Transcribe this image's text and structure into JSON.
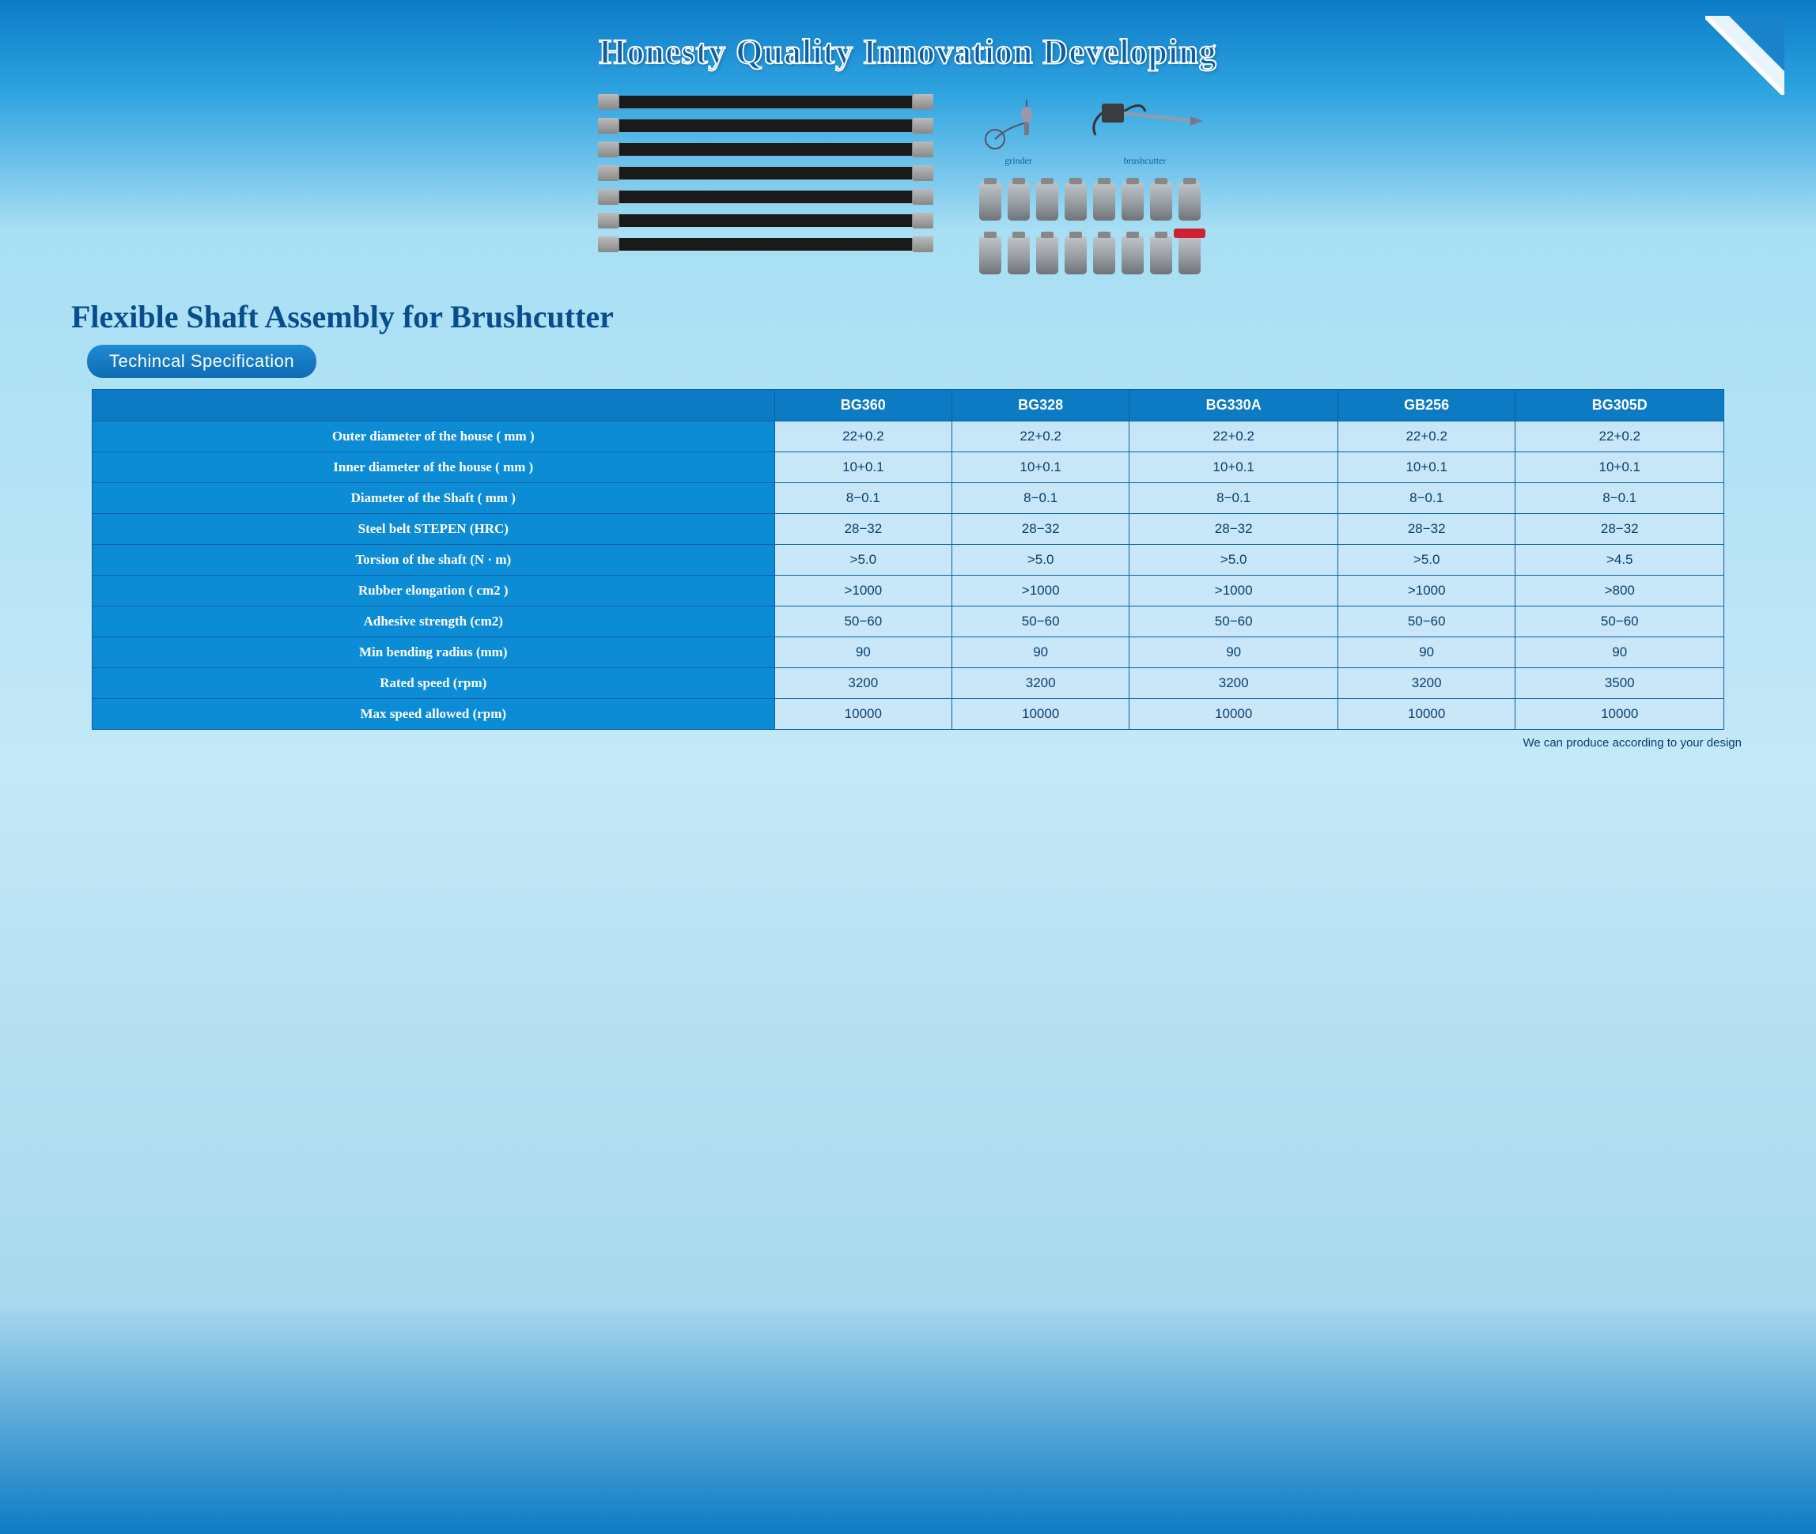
{
  "banner": {
    "slogan": "Honesty Quality Innovation Developing",
    "text_color": "#0a5fa8",
    "stroke_color": "#ffffff"
  },
  "illustrations": {
    "shaft_count": 7,
    "tool_labels": {
      "left": "grinder",
      "right": "brushcutter"
    },
    "connector_rows": [
      8,
      8
    ],
    "connector_colors": {
      "default": "#9aa0a4",
      "special": "#cc2233"
    }
  },
  "section": {
    "title": "Flexible Shaft Assembly for Brushcutter",
    "pill_label": "Techincal Specification"
  },
  "table": {
    "type": "table",
    "border_color": "#0a5fa8",
    "header_bg": "#0d7bc4",
    "rowheader_bg": "#0d8cd6",
    "header_text_color": "#ffffff",
    "cell_text_color": "#0a3d6b",
    "columns": [
      "",
      "BG360",
      "BG328",
      "BG330A",
      "GB256",
      "BG305D"
    ],
    "rows": [
      {
        "label": "Outer diameter of the house ( mm )",
        "values": [
          "22+0.2",
          "22+0.2",
          "22+0.2",
          "22+0.2",
          "22+0.2"
        ]
      },
      {
        "label": "Inner diameter of the house ( mm )",
        "values": [
          "10+0.1",
          "10+0.1",
          "10+0.1",
          "10+0.1",
          "10+0.1"
        ]
      },
      {
        "label": "Diameter of the Shaft  ( mm )",
        "values": [
          "8−0.1",
          "8−0.1",
          "8−0.1",
          "8−0.1",
          "8−0.1"
        ]
      },
      {
        "label": "Steel belt STEPEN (HRC)",
        "values": [
          "28−32",
          "28−32",
          "28−32",
          "28−32",
          "28−32"
        ]
      },
      {
        "label": "Torsion of the shaft (N · m)",
        "values": [
          ">5.0",
          ">5.0",
          ">5.0",
          ">5.0",
          ">4.5"
        ]
      },
      {
        "label": "Rubber elongation  ( cm2 )",
        "values": [
          ">1000",
          ">1000",
          ">1000",
          ">1000",
          ">800"
        ]
      },
      {
        "label": "Adhesive strength (cm2)",
        "values": [
          "50−60",
          "50−60",
          "50−60",
          "50−60",
          "50−60"
        ]
      },
      {
        "label": "Min bending radius (mm)",
        "values": [
          "90",
          "90",
          "90",
          "90",
          "90"
        ]
      },
      {
        "label": "Rated speed (rpm)",
        "values": [
          "3200",
          "3200",
          "3200",
          "3200",
          "3500"
        ]
      },
      {
        "label": "Max speed allowed (rpm)",
        "values": [
          "10000",
          "10000",
          "10000",
          "10000",
          "10000"
        ]
      }
    ]
  },
  "footnote": "We can produce according to your design",
  "page_colors": {
    "bg_top": "#0b7cc8",
    "bg_mid": "#c4e8f7",
    "bg_bottom": "#0d7bc4",
    "brand_blue": "#0a5fa8"
  }
}
